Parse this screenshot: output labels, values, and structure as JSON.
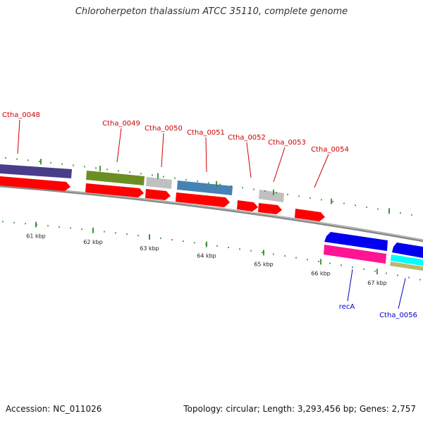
{
  "header": {
    "title": "Chloroherpeton thalassium ATCC 35110, complete genome"
  },
  "footer": {
    "accession": "Accession: NC_011026",
    "topology": "Topology: circular; Length: 3,293,456 bp; Genes: 2,757"
  },
  "ticks": [
    {
      "label": "61 kbp"
    },
    {
      "label": "62 kbp"
    },
    {
      "label": "63 kbp"
    },
    {
      "label": "64 kbp"
    },
    {
      "label": "65 kbp"
    },
    {
      "label": "66 kbp"
    },
    {
      "label": "67 kbp"
    }
  ],
  "gene_labels": [
    {
      "text": "Ctha_0048",
      "strand": "forward"
    },
    {
      "text": "Ctha_0049",
      "strand": "forward"
    },
    {
      "text": "Ctha_0050",
      "strand": "forward"
    },
    {
      "text": "Ctha_0051",
      "strand": "forward"
    },
    {
      "text": "Ctha_0052",
      "strand": "forward"
    },
    {
      "text": "Ctha_0053",
      "strand": "forward"
    },
    {
      "text": "Ctha_0054",
      "strand": "forward"
    },
    {
      "text": "recA",
      "strand": "reverse"
    },
    {
      "text": "Ctha_0056",
      "strand": "reverse"
    }
  ],
  "colors": {
    "forward_label": "#cc0000",
    "reverse_label": "#0000cc",
    "cds": "#ff0000",
    "backbone": "#8a8a8a",
    "tick": "#2e8b2e",
    "dark_purple": "#483d8b",
    "olive": "#6b8e23",
    "light_grey": "#c0c0c0",
    "steel_blue": "#4682b4",
    "blue": "#0000ee",
    "magenta": "#ff1493",
    "cyan": "#00ffff",
    "khaki": "#bdb76b"
  }
}
